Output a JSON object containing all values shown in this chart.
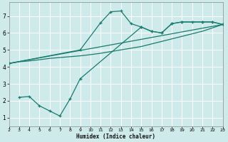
{
  "bg_color": "#ceeaea",
  "grid_color": "#b0d8d8",
  "line_color": "#1a7a6e",
  "xlabel": "Humidex (Indice chaleur)",
  "xlim": [
    2,
    23
  ],
  "ylim": [
    0.5,
    7.8
  ],
  "xticks": [
    2,
    3,
    4,
    5,
    6,
    7,
    8,
    9,
    10,
    11,
    12,
    13,
    14,
    15,
    16,
    17,
    18,
    19,
    20,
    21,
    22,
    23
  ],
  "yticks": [
    1,
    2,
    3,
    4,
    5,
    6,
    7
  ],
  "line1_x": [
    2,
    23
  ],
  "line1_y": [
    4.2,
    6.5
  ],
  "line2_x": [
    2,
    3,
    4,
    5,
    6,
    7,
    8,
    9,
    10,
    11,
    12,
    13,
    14,
    15,
    16,
    17,
    18,
    19,
    20,
    21,
    22,
    23
  ],
  "line2_y": [
    4.2,
    4.3,
    4.35,
    4.42,
    4.5,
    4.55,
    4.6,
    4.65,
    4.72,
    4.8,
    4.9,
    5.0,
    5.1,
    5.2,
    5.35,
    5.5,
    5.65,
    5.8,
    5.95,
    6.1,
    6.3,
    6.5
  ],
  "line3_x": [
    2,
    9,
    11,
    12,
    13,
    14,
    15,
    16,
    17,
    18,
    19,
    20,
    21,
    22,
    23
  ],
  "line3_y": [
    4.2,
    5.0,
    6.6,
    7.25,
    7.3,
    6.55,
    6.35,
    6.1,
    6.0,
    6.55,
    6.65,
    6.65,
    6.65,
    6.65,
    6.5
  ],
  "line4_x": [
    3,
    4,
    5,
    6,
    7,
    8,
    9,
    15,
    16,
    17,
    18,
    19,
    21,
    22,
    23
  ],
  "line4_y": [
    2.2,
    2.25,
    1.7,
    1.4,
    1.1,
    2.1,
    3.3,
    6.35,
    6.1,
    6.0,
    6.55,
    6.65,
    6.65,
    6.65,
    6.5
  ]
}
